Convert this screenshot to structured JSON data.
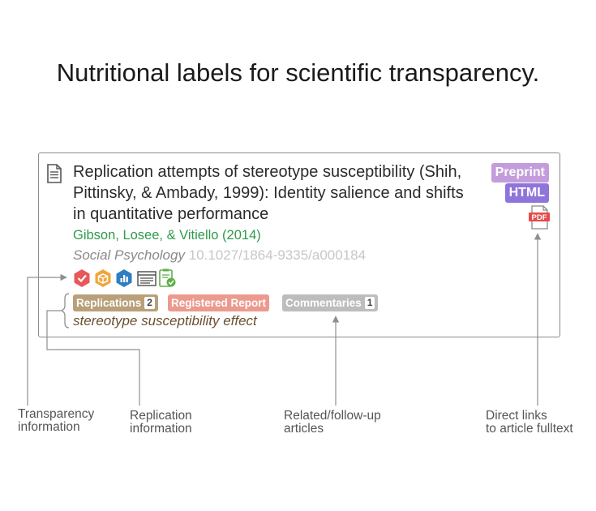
{
  "heading": "Nutritional labels for scientific transparency.",
  "card": {
    "title": "Replication attempts of stereotype susceptibility (Shih, Pittinsky, & Ambady, 1999): Identity salience and shifts in quantitative performance",
    "authors": "Gibson, Losee, & Vitiello (2014)",
    "journal": "Social Psychology",
    "doi": "10.1027/1864-9335/a000184",
    "preprint_label": "Preprint",
    "html_label": "HTML",
    "pdf_label": "PDF",
    "transparency_icons": [
      "prereg-check-icon",
      "open-materials-icon",
      "open-data-icon",
      "open-code-icon",
      "checklist-icon"
    ],
    "tags": {
      "replications_label": "Replications",
      "replications_count": "2",
      "registered_label": "Registered Report",
      "commentaries_label": "Commentaries",
      "commentaries_count": "1"
    },
    "effect": "stereotype susceptibility effect"
  },
  "callouts": {
    "transparency": "Transparency\ninformation",
    "replication": "Replication\ninformation",
    "related": "Related/follow-up\narticles",
    "fulltext": "Direct links\nto article fulltext"
  },
  "colors": {
    "preprint": "#c39ddb",
    "html": "#8f74dc",
    "authors": "#2f9a4b",
    "replications": "#b9a07a",
    "registered": "#ec9a8e",
    "commentaries": "#bdbdbd",
    "effect": "#6b4f2f"
  }
}
